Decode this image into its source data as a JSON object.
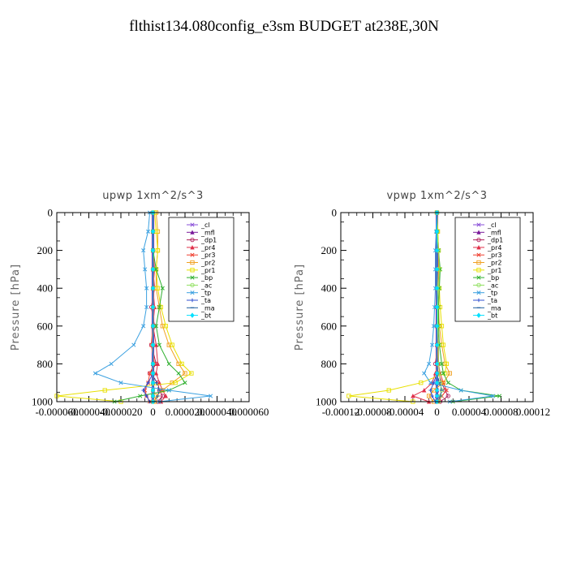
{
  "page": {
    "title": "flthist134.080config_e3sm  BUDGET at238E,30N"
  },
  "chart_data": [
    {
      "type": "line",
      "title": "upwp   1xm^2/s^3",
      "ylabel": "Pressure [hPa]",
      "xlabel": "",
      "xlim": [
        -6e-05,
        6e-05
      ],
      "ylim": [
        1000,
        0
      ],
      "y_ticks": [
        0,
        200,
        400,
        600,
        800,
        1000
      ],
      "x_ticks": [
        "-0.000060",
        "-0.000040",
        "-0.000020",
        "0",
        "0.000020",
        "0.000040",
        "0.000060"
      ],
      "legend_position": "top-right",
      "series": [
        {
          "name": "_cl",
          "color": "#8a4fd8",
          "x": [
            0,
            0,
            0,
            0,
            0,
            0,
            0,
            0,
            0,
            0,
            0,
            0,
            0,
            0
          ],
          "y": [
            0,
            100,
            200,
            300,
            400,
            500,
            600,
            700,
            800,
            850,
            900,
            940,
            970,
            1000
          ]
        },
        {
          "name": "_mfl",
          "color": "#7a1a9a",
          "x": [
            0,
            0,
            0,
            0,
            0,
            0,
            0,
            0,
            0,
            0,
            0,
            0,
            0,
            0
          ],
          "y": [
            0,
            100,
            200,
            300,
            400,
            500,
            600,
            700,
            800,
            850,
            900,
            940,
            970,
            1000
          ]
        },
        {
          "name": "_dp1",
          "color": "#b0205a",
          "x": [
            0,
            0,
            0,
            0,
            1e-06,
            -1e-06,
            1e-06,
            -1e-06,
            2e-06,
            -2e-06,
            3e-06,
            4e-06,
            6e-06,
            3e-06
          ],
          "y": [
            0,
            100,
            200,
            300,
            400,
            500,
            600,
            700,
            800,
            850,
            900,
            940,
            970,
            1000
          ]
        },
        {
          "name": "_pr4",
          "color": "#e0304a",
          "x": [
            0,
            0,
            0,
            1e-06,
            0,
            1e-06,
            0,
            2e-06,
            3e-06,
            2e-06,
            4e-06,
            6e-06,
            8e-06,
            5e-06
          ],
          "y": [
            0,
            100,
            200,
            300,
            400,
            500,
            600,
            700,
            800,
            850,
            900,
            940,
            970,
            1000
          ]
        },
        {
          "name": "_pr3",
          "color": "#f04030",
          "x": [
            0,
            0,
            0,
            0,
            0,
            0,
            0,
            -1e-06,
            1e-06,
            -2e-06,
            -3e-06,
            -5e-06,
            -4e-06,
            -2e-06
          ],
          "y": [
            0,
            100,
            200,
            300,
            400,
            500,
            600,
            700,
            800,
            850,
            900,
            940,
            970,
            1000
          ]
        },
        {
          "name": "_pr2",
          "color": "#f0a020",
          "x": [
            2e-06,
            3e-06,
            3e-06,
            2e-06,
            2e-06,
            4e-06,
            6e-06,
            1e-05,
            1.6e-05,
            2e-05,
            1.2e-05,
            6e-06,
            2e-06,
            1e-06
          ],
          "y": [
            0,
            100,
            200,
            300,
            400,
            500,
            600,
            700,
            800,
            850,
            900,
            940,
            970,
            1000
          ]
        },
        {
          "name": "_pr1",
          "color": "#e8e000",
          "x": [
            1e-06,
            2e-06,
            3e-06,
            2e-06,
            3e-06,
            5e-06,
            8e-06,
            1.2e-05,
            1.8e-05,
            2.4e-05,
            1.4e-05,
            -3e-05,
            -7e-05,
            -2e-05
          ],
          "y": [
            0,
            100,
            200,
            300,
            400,
            500,
            600,
            700,
            800,
            850,
            900,
            940,
            970,
            1000
          ]
        },
        {
          "name": "_bp",
          "color": "#30b030",
          "x": [
            0,
            0,
            0,
            2e-06,
            6e-06,
            4e-06,
            2e-06,
            4e-06,
            1e-05,
            1.6e-05,
            2e-05,
            1e-05,
            -8e-06,
            -2.4e-05
          ],
          "y": [
            0,
            100,
            200,
            300,
            400,
            500,
            600,
            700,
            800,
            850,
            900,
            940,
            970,
            1000
          ]
        },
        {
          "name": "_ac",
          "color": "#90e060",
          "x": [
            0,
            0,
            0,
            0,
            0,
            0,
            0,
            0,
            0,
            0,
            0,
            0,
            0,
            0
          ],
          "y": [
            0,
            100,
            200,
            300,
            400,
            500,
            600,
            700,
            800,
            850,
            900,
            940,
            970,
            1000
          ]
        },
        {
          "name": "_tp",
          "color": "#3aa0e0",
          "x": [
            -2e-06,
            -3e-06,
            -6e-06,
            -5e-06,
            -4e-06,
            -4e-06,
            -6e-06,
            -1.2e-05,
            -2.6e-05,
            -3.6e-05,
            -2e-05,
            1e-05,
            3.6e-05,
            4e-06
          ],
          "y": [
            0,
            100,
            200,
            300,
            400,
            500,
            600,
            700,
            800,
            850,
            900,
            940,
            970,
            1000
          ]
        },
        {
          "name": "_ta",
          "color": "#3050d0",
          "x": [
            0,
            0,
            0,
            0,
            0,
            0,
            0,
            0,
            0,
            0,
            -3e-06,
            -6e-06,
            -4e-06,
            -2e-06
          ],
          "y": [
            0,
            100,
            200,
            300,
            400,
            500,
            600,
            700,
            800,
            850,
            900,
            940,
            970,
            1000
          ]
        },
        {
          "name": "_ma",
          "color": "#2060a0",
          "x": [
            0,
            0,
            0,
            0,
            0,
            0,
            0,
            0,
            0,
            0,
            2e-06,
            4e-06,
            3e-06,
            1e-06
          ],
          "y": [
            0,
            100,
            200,
            300,
            400,
            500,
            600,
            700,
            800,
            850,
            900,
            940,
            970,
            1000
          ]
        },
        {
          "name": "_bt",
          "color": "#00e0ff",
          "x": [
            0,
            0,
            0,
            0,
            0,
            0,
            0,
            0,
            0,
            0,
            0,
            0,
            0,
            0
          ],
          "y": [
            0,
            100,
            200,
            300,
            400,
            500,
            600,
            700,
            800,
            850,
            900,
            940,
            970,
            1000
          ]
        }
      ]
    },
    {
      "type": "line",
      "title": "vpwp   1xm^2/s^3",
      "ylabel": "Pressure [hPa]",
      "xlabel": "",
      "xlim": [
        -0.00012,
        0.00012
      ],
      "ylim": [
        1000,
        0
      ],
      "y_ticks": [
        0,
        200,
        400,
        600,
        800,
        1000
      ],
      "x_ticks": [
        "-0.00012",
        "-0.00008",
        "-0.00004",
        "0",
        "0.00004",
        "0.00008",
        "0.00012"
      ],
      "legend_position": "top-right",
      "series": [
        {
          "name": "_cl",
          "color": "#8a4fd8",
          "x": [
            0,
            0,
            0,
            0,
            0,
            0,
            0,
            0,
            0,
            0,
            0,
            0,
            0,
            0
          ],
          "y": [
            0,
            100,
            200,
            300,
            400,
            500,
            600,
            700,
            800,
            850,
            900,
            940,
            970,
            1000
          ]
        },
        {
          "name": "_mfl",
          "color": "#7a1a9a",
          "x": [
            0,
            0,
            0,
            0,
            0,
            0,
            0,
            0,
            0,
            0,
            0,
            0,
            0,
            0
          ],
          "y": [
            0,
            100,
            200,
            300,
            400,
            500,
            600,
            700,
            800,
            850,
            900,
            940,
            970,
            1000
          ]
        },
        {
          "name": "_dp1",
          "color": "#b0205a",
          "x": [
            0,
            0,
            0,
            0,
            0,
            0,
            0,
            1e-06,
            -2e-06,
            2e-06,
            6e-06,
            1e-05,
            1.4e-05,
            4e-06
          ],
          "y": [
            0,
            100,
            200,
            300,
            400,
            500,
            600,
            700,
            800,
            850,
            900,
            940,
            970,
            1000
          ]
        },
        {
          "name": "_pr4",
          "color": "#e0304a",
          "x": [
            0,
            0,
            0,
            0,
            0,
            0,
            0,
            1e-06,
            2e-06,
            -2e-06,
            -6e-06,
            -1.6e-05,
            -3e-05,
            -1e-05
          ],
          "y": [
            0,
            100,
            200,
            300,
            400,
            500,
            600,
            700,
            800,
            850,
            900,
            940,
            970,
            1000
          ]
        },
        {
          "name": "_pr3",
          "color": "#f04030",
          "x": [
            0,
            0,
            0,
            0,
            0,
            0,
            0,
            0,
            2e-06,
            4e-06,
            8e-06,
            1.2e-05,
            6e-06,
            2e-06
          ],
          "y": [
            0,
            100,
            200,
            300,
            400,
            500,
            600,
            700,
            800,
            850,
            900,
            940,
            970,
            1000
          ]
        },
        {
          "name": "_pr2",
          "color": "#f0a020",
          "x": [
            0,
            1e-06,
            2e-06,
            2e-06,
            1e-06,
            2e-06,
            3e-06,
            6e-06,
            1e-05,
            1.6e-05,
            8e-06,
            -4e-06,
            -1e-05,
            -4e-06
          ],
          "y": [
            0,
            100,
            200,
            300,
            400,
            500,
            600,
            700,
            800,
            850,
            900,
            940,
            970,
            1000
          ]
        },
        {
          "name": "_pr1",
          "color": "#e8e000",
          "x": [
            0,
            1e-06,
            2e-06,
            3e-06,
            3e-06,
            4e-06,
            6e-06,
            8e-06,
            1.2e-05,
            1e-05,
            -2e-05,
            -6e-05,
            -0.00011,
            -3e-05
          ],
          "y": [
            0,
            100,
            200,
            300,
            400,
            500,
            600,
            700,
            800,
            850,
            900,
            940,
            970,
            1000
          ]
        },
        {
          "name": "_bp",
          "color": "#30b030",
          "x": [
            0,
            0,
            2e-06,
            4e-06,
            3e-06,
            2e-06,
            2e-06,
            3e-06,
            6e-06,
            8e-06,
            1.4e-05,
            3e-05,
            7.8e-05,
            2e-05
          ],
          "y": [
            0,
            100,
            200,
            300,
            400,
            500,
            600,
            700,
            800,
            850,
            900,
            940,
            970,
            1000
          ]
        },
        {
          "name": "_ac",
          "color": "#90e060",
          "x": [
            0,
            0,
            2e-06,
            3e-06,
            2e-06,
            1e-06,
            1e-06,
            2e-06,
            2e-06,
            3e-06,
            4e-06,
            6e-06,
            4e-06,
            2e-06
          ],
          "y": [
            0,
            100,
            200,
            300,
            400,
            500,
            600,
            700,
            800,
            850,
            900,
            940,
            970,
            1000
          ]
        },
        {
          "name": "_tp",
          "color": "#3aa0e0",
          "x": [
            0,
            -1e-06,
            -2e-06,
            -2e-06,
            -2e-06,
            -3e-06,
            -4e-06,
            -6e-06,
            -1e-05,
            -1.6e-05,
            -8e-06,
            3e-05,
            7e-05,
            1.6e-05
          ],
          "y": [
            0,
            100,
            200,
            300,
            400,
            500,
            600,
            700,
            800,
            850,
            900,
            940,
            970,
            1000
          ]
        },
        {
          "name": "_ta",
          "color": "#3050d0",
          "x": [
            0,
            0,
            0,
            0,
            0,
            0,
            0,
            0,
            0,
            0,
            -4e-06,
            -8e-06,
            -6e-06,
            -2e-06
          ],
          "y": [
            0,
            100,
            200,
            300,
            400,
            500,
            600,
            700,
            800,
            850,
            900,
            940,
            970,
            1000
          ]
        },
        {
          "name": "_ma",
          "color": "#2060a0",
          "x": [
            0,
            0,
            0,
            0,
            0,
            0,
            0,
            0,
            0,
            0,
            3e-06,
            6e-06,
            4e-06,
            1e-06
          ],
          "y": [
            0,
            100,
            200,
            300,
            400,
            500,
            600,
            700,
            800,
            850,
            900,
            940,
            970,
            1000
          ]
        },
        {
          "name": "_bt",
          "color": "#00e0ff",
          "x": [
            0,
            0,
            0,
            0,
            0,
            0,
            0,
            0,
            0,
            0,
            0,
            0,
            0,
            0
          ],
          "y": [
            0,
            100,
            200,
            300,
            400,
            500,
            600,
            700,
            800,
            850,
            900,
            940,
            970,
            1000
          ]
        }
      ]
    }
  ]
}
